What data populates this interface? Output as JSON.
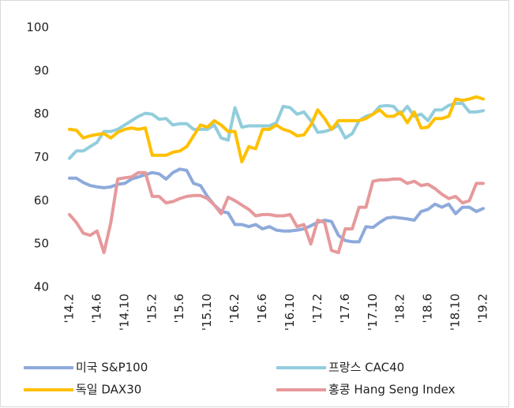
{
  "chart_data": {
    "type": "line",
    "categories": [
      "'14.2",
      null,
      null,
      null,
      "'14.6",
      null,
      null,
      null,
      "'14.10",
      null,
      null,
      null,
      "'15.2",
      null,
      null,
      null,
      "'15.6",
      null,
      null,
      null,
      "'15.10",
      null,
      null,
      null,
      "'16.2",
      null,
      null,
      null,
      "'16.6",
      null,
      null,
      null,
      "'16.10",
      null,
      null,
      null,
      "'17.2",
      null,
      null,
      null,
      "'17.6",
      null,
      null,
      null,
      "'17.10",
      null,
      null,
      null,
      "'18.2",
      null,
      null,
      null,
      "'18.6",
      null,
      null,
      null,
      "'18.10",
      null,
      null,
      null,
      "'19.2"
    ],
    "series": [
      {
        "name": "미국 S&P100",
        "color": "#8eaadb",
        "values": [
          65.2,
          65.2,
          64.2,
          63.5,
          63.2,
          63.0,
          63.2,
          63.8,
          64.0,
          65.0,
          65.5,
          66.0,
          66.5,
          66.2,
          65.0,
          66.5,
          67.3,
          67.0,
          64.0,
          63.5,
          61.0,
          59.0,
          57.5,
          57.2,
          54.5,
          54.5,
          54.0,
          54.5,
          53.5,
          54.0,
          53.2,
          53.0,
          53.0,
          53.2,
          53.5,
          54.2,
          55.0,
          55.5,
          55.2,
          52.0,
          50.8,
          50.5,
          50.5,
          54.0,
          53.8,
          55.0,
          56.0,
          56.2,
          56.0,
          55.8,
          55.5,
          57.5,
          58.0,
          59.2,
          58.5,
          59.2,
          57.0,
          58.5,
          58.5,
          57.5,
          58.2
        ]
      },
      {
        "name": "프랑스 CAC40",
        "color": "#92cddc",
        "values": [
          69.8,
          71.5,
          71.5,
          72.5,
          73.5,
          76.0,
          76.0,
          76.5,
          77.5,
          78.5,
          79.5,
          80.2,
          80.0,
          78.8,
          79.0,
          77.5,
          77.8,
          77.8,
          76.5,
          76.5,
          76.5,
          77.5,
          74.5,
          74.0,
          81.5,
          77.0,
          77.3,
          77.3,
          77.3,
          77.3,
          78.0,
          81.8,
          81.5,
          80.0,
          80.5,
          78.5,
          75.8,
          76.0,
          76.5,
          77.5,
          74.5,
          75.5,
          78.5,
          79.5,
          80.0,
          81.8,
          82.0,
          81.8,
          80.0,
          81.8,
          79.5,
          80.0,
          78.5,
          81.0,
          81.0,
          82.0,
          82.5,
          82.5,
          80.5,
          80.5,
          80.8
        ]
      },
      {
        "name": "독일 DAX30",
        "color": "#ffc000",
        "values": [
          76.5,
          76.3,
          74.5,
          75.0,
          75.3,
          75.5,
          74.5,
          75.8,
          76.5,
          76.8,
          76.5,
          76.8,
          70.5,
          70.5,
          70.5,
          71.2,
          71.5,
          72.5,
          75.0,
          77.5,
          77.0,
          78.5,
          77.5,
          76.0,
          76.0,
          69.0,
          72.5,
          72.0,
          76.5,
          76.5,
          77.5,
          76.5,
          76.0,
          75.0,
          75.2,
          77.5,
          81.0,
          79.0,
          76.5,
          78.5,
          78.5,
          78.5,
          78.5,
          79.0,
          80.0,
          81.0,
          79.5,
          79.5,
          80.5,
          78.0,
          80.5,
          76.8,
          77.0,
          79.0,
          79.0,
          79.5,
          83.5,
          83.2,
          83.5,
          84.0,
          83.5
        ]
      },
      {
        "name": "홍콩 Hang Seng Index",
        "color": "#e6999b",
        "values": [
          56.8,
          55.0,
          52.5,
          52.0,
          53.0,
          48.0,
          55.0,
          65.0,
          65.3,
          65.5,
          66.5,
          66.5,
          61.0,
          61.0,
          59.5,
          59.8,
          60.5,
          61.0,
          61.2,
          61.2,
          60.5,
          59.0,
          57.0,
          60.8,
          60.0,
          59.0,
          58.0,
          56.5,
          56.8,
          56.8,
          56.5,
          56.5,
          56.8,
          54.0,
          54.5,
          50.0,
          55.5,
          55.0,
          48.5,
          48.0,
          53.5,
          53.5,
          58.5,
          58.5,
          64.5,
          64.8,
          64.8,
          65.0,
          65.0,
          64.0,
          64.5,
          63.5,
          63.8,
          62.8,
          61.5,
          60.5,
          61.0,
          59.5,
          60.0,
          64.0,
          64.0
        ]
      }
    ],
    "ylim": [
      40,
      100
    ],
    "yticks": [
      40,
      50,
      60,
      70,
      80,
      90,
      100
    ],
    "grid": false,
    "legend": "bottom"
  }
}
